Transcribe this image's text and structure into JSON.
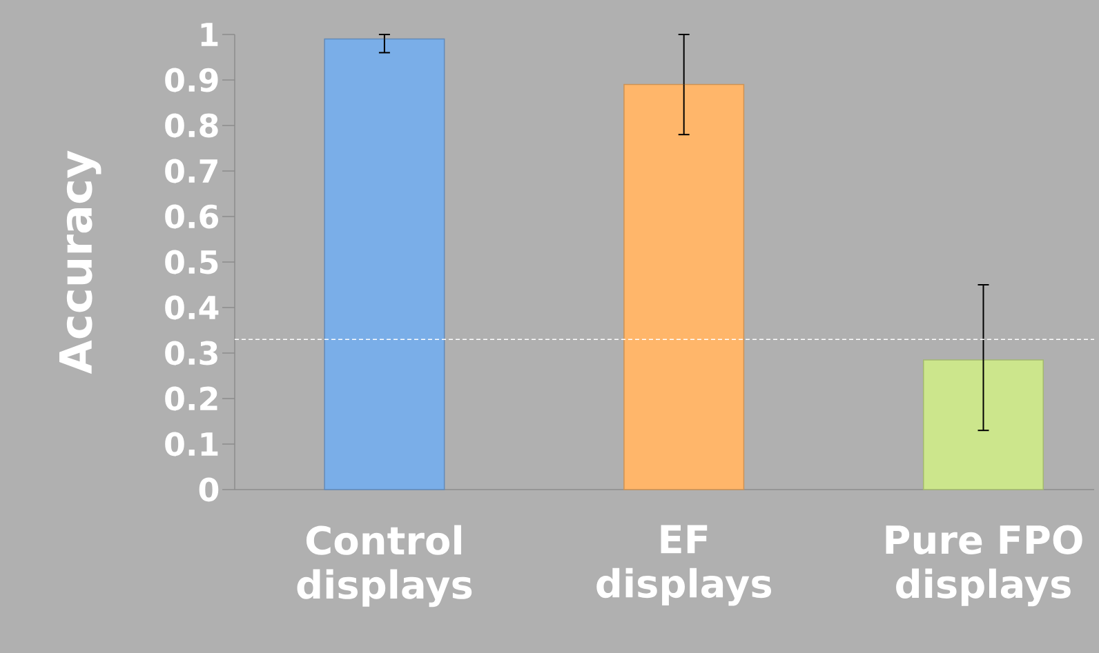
{
  "chart_data": {
    "type": "bar",
    "ylabel": "Accuracy",
    "categories": [
      "Control displays",
      "EF displays",
      "Pure FPO displays"
    ],
    "values": [
      0.99,
      0.89,
      0.285
    ],
    "colors": [
      "#7aaee8",
      "#ffb66a",
      "#cce68c"
    ],
    "errors": [
      [
        0.96,
        1.0
      ],
      [
        0.78,
        1.0
      ],
      [
        0.13,
        0.45
      ]
    ],
    "ylim": [
      0,
      1
    ],
    "yticks": [
      0,
      0.1,
      0.2,
      0.3,
      0.4,
      0.5,
      0.6,
      0.7,
      0.8,
      0.9,
      1
    ],
    "ref_lines": [
      {
        "axis": "y",
        "value": 0.33,
        "color": "#ffffff",
        "line_style": "dashed"
      }
    ]
  }
}
